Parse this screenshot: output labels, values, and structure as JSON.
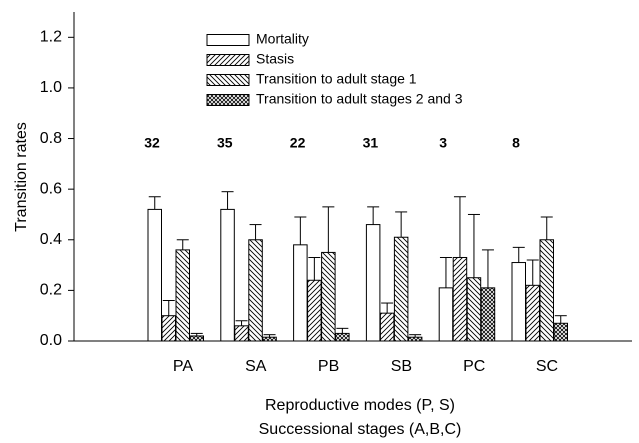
{
  "chart_data": {
    "type": "bar",
    "y_label": "Transition rates",
    "x_label": "Reproductive modes (P, S)",
    "x_label_2": "Successional stages (A,B,C)",
    "categories": [
      "PA",
      "SA",
      "PB",
      "SB",
      "PC",
      "SC"
    ],
    "n_labels": [
      32,
      35,
      22,
      31,
      3,
      8
    ],
    "series": [
      {
        "name": "Mortality",
        "color": "#ffffff",
        "pattern": "none",
        "values": [
          0.52,
          0.52,
          0.38,
          0.46,
          0.21,
          0.31
        ],
        "errors": [
          0.05,
          0.07,
          0.11,
          0.07,
          0.12,
          0.06
        ]
      },
      {
        "name": "Stasis",
        "color": "#ffffff",
        "pattern": "forward",
        "values": [
          0.1,
          0.06,
          0.24,
          0.11,
          0.33,
          0.22
        ],
        "errors": [
          0.06,
          0.02,
          0.09,
          0.04,
          0.24,
          0.1
        ]
      },
      {
        "name": "Transition to adult stage 1",
        "color": "#ffffff",
        "pattern": "backward",
        "values": [
          0.36,
          0.4,
          0.35,
          0.41,
          0.25,
          0.4
        ],
        "errors": [
          0.04,
          0.06,
          0.18,
          0.1,
          0.25,
          0.09
        ]
      },
      {
        "name": "Transition to adult stages 2 and 3",
        "color": "#ffffff",
        "pattern": "cross",
        "values": [
          0.02,
          0.015,
          0.03,
          0.015,
          0.21,
          0.07
        ],
        "errors": [
          0.01,
          0.01,
          0.02,
          0.01,
          0.15,
          0.03
        ]
      }
    ],
    "ylim": [
      0,
      1.3
    ],
    "yticks": [
      {
        "value": 0,
        "label": "0.0"
      },
      0.2,
      0.4,
      0.6,
      0.8,
      {
        "value": 1,
        "label": "1.0"
      },
      1.2
    ]
  }
}
